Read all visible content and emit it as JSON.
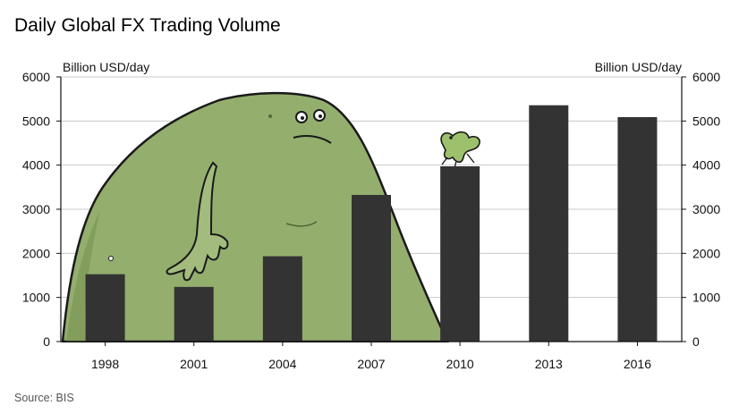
{
  "chart_data": {
    "type": "bar",
    "title": "Daily Global FX Trading Volume",
    "source": "Source: BIS",
    "ylabel_left": "Billion USD/day",
    "ylabel_right": "Billion USD/day",
    "categories": [
      "1998",
      "2001",
      "2004",
      "2007",
      "2010",
      "2013",
      "2016"
    ],
    "values": [
      1527,
      1239,
      1934,
      3324,
      3973,
      5357,
      5088
    ],
    "ylim": [
      0,
      6000
    ],
    "yticks": [
      0,
      1000,
      2000,
      3000,
      4000,
      5000,
      6000
    ],
    "grid": true,
    "legend": "none",
    "colors": {
      "bar": "#333333",
      "grid": "#c8c8c8",
      "blob": "#94ae6e",
      "blob_dark": "#6f8a4c",
      "outline": "#1a1a1a"
    }
  }
}
